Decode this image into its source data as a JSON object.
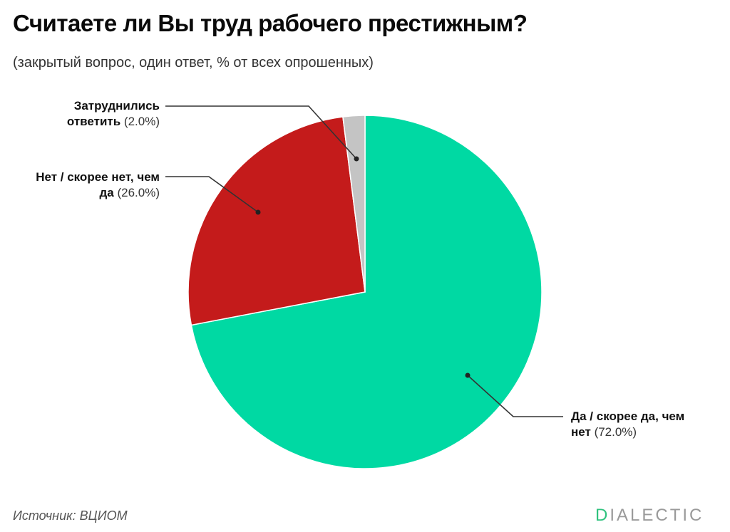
{
  "header": {
    "title": "Считаете ли Вы труд рабочего престижным?",
    "subtitle": "(закрытый вопрос, один ответ, % от всех опрошенных)"
  },
  "labels": {
    "hard": {
      "name_line1": "Затруднились",
      "name_line2": "ответить",
      "pct": "(2.0%)"
    },
    "no": {
      "name_line1": "Нет / скорее нет, чем",
      "name_line2": "да",
      "pct": "(26.0%)"
    },
    "yes": {
      "name_line1": "Да / скорее да, чем",
      "name_line2": "нет",
      "pct": "(72.0%)"
    }
  },
  "footer": {
    "source": "Источник: ВЦИОМ",
    "logo_first": "D",
    "logo_rest": "IALECTIC"
  },
  "colors": {
    "yes": "#00d9a3",
    "no": "#c41b1b",
    "hard": "#c4c4c4",
    "brand": "#2fc27e"
  },
  "chart_data": {
    "type": "pie",
    "title": "Считаете ли Вы труд рабочего престижным?",
    "subtitle": "(закрытый вопрос, один ответ, % от всех опрошенных)",
    "categories": [
      "Да / скорее да, чем нет",
      "Нет / скорее нет, чем да",
      "Затруднились ответить"
    ],
    "values": [
      72.0,
      26.0,
      2.0
    ],
    "colors": [
      "#00d9a3",
      "#c41b1b",
      "#c4c4c4"
    ],
    "start_angle": "12 o'clock",
    "direction": "clockwise",
    "legend": "callout labels",
    "source": "Источник: ВЦИОМ"
  }
}
